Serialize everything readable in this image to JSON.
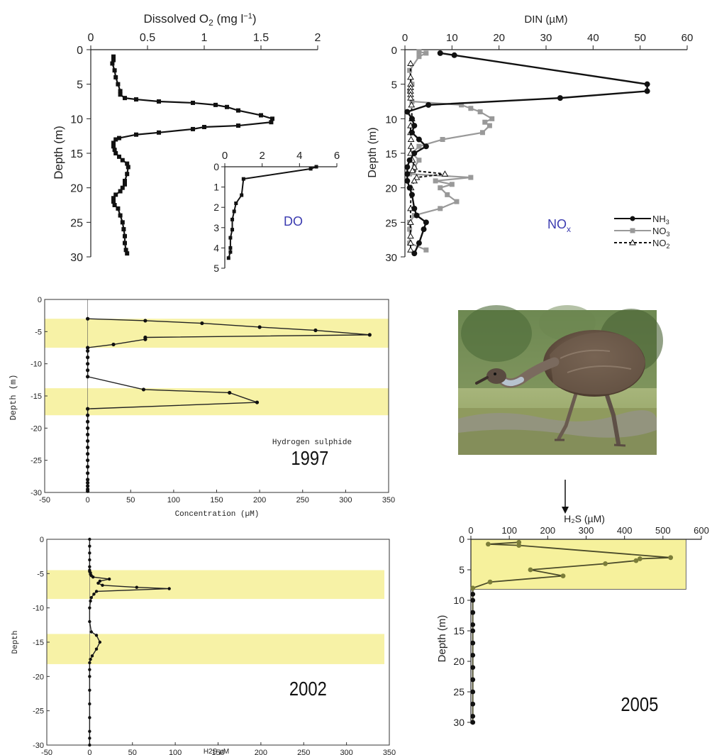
{
  "chart_data": [
    {
      "id": "do",
      "type": "line",
      "xlabel": "Dissolved O₂ (mg l⁻¹)",
      "ylabel": "Depth (m)",
      "xlim": [
        0,
        2
      ],
      "ylim": [
        30,
        0
      ],
      "xticks": [
        "0",
        "0.5",
        "1",
        "1.5",
        "2"
      ],
      "yticks": [
        "0",
        "5",
        "10",
        "15",
        "20",
        "25",
        "30"
      ],
      "series": [
        {
          "x": [
            0.2,
            0.2,
            0.19,
            0.21,
            0.22,
            0.24,
            0.26,
            0.26,
            0.3,
            0.4,
            0.6,
            0.9,
            1.1,
            1.2,
            1.3,
            1.5,
            1.6,
            1.59,
            1.3,
            1.0,
            0.9,
            0.6,
            0.4,
            0.25,
            0.22,
            0.2,
            0.2,
            0.21,
            0.22,
            0.25,
            0.28,
            0.32,
            0.33,
            0.32,
            0.3,
            0.3,
            0.28,
            0.26,
            0.22,
            0.2,
            0.2,
            0.21,
            0.24,
            0.26,
            0.28,
            0.29,
            0.3,
            0.3,
            0.31,
            0.32
          ],
          "y": [
            1,
            1.5,
            2,
            3,
            4,
            5,
            6,
            6.5,
            7,
            7.2,
            7.5,
            7.7,
            8,
            8.3,
            8.8,
            9.5,
            10,
            10.5,
            11,
            11.2,
            11.5,
            12,
            12.3,
            12.8,
            13,
            13.5,
            14,
            14.5,
            15,
            15.5,
            16,
            16.5,
            17,
            18,
            19,
            19.5,
            20,
            20.5,
            21,
            21.5,
            22,
            22.5,
            23,
            24,
            25,
            26,
            27,
            28,
            29,
            29.5
          ]
        }
      ]
    },
    {
      "id": "do-inset",
      "type": "line",
      "label": "DO",
      "xlim": [
        0,
        6
      ],
      "ylim": [
        5,
        0
      ],
      "xticks": [
        "0",
        "2",
        "4",
        "6"
      ],
      "yticks": [
        "0",
        "1",
        "2",
        "3",
        "4",
        "5"
      ],
      "series": [
        {
          "x": [
            4.9,
            4.6,
            1,
            0.9,
            0.6,
            0.5,
            0.4,
            0.4,
            0.3,
            0.3,
            0.3,
            0.2
          ],
          "y": [
            0,
            0.1,
            0.6,
            1.4,
            1.8,
            2.2,
            2.6,
            3.1,
            3.5,
            4,
            4.2,
            4.5
          ]
        }
      ]
    },
    {
      "id": "din",
      "type": "line",
      "xlabel": "DIN (µM)",
      "ylabel": "Depth (m)",
      "label": "NO",
      "label_sub": "x",
      "xlim": [
        0,
        60
      ],
      "ylim": [
        30,
        0
      ],
      "xticks": [
        "0",
        "10",
        "20",
        "30",
        "40",
        "50",
        "60"
      ],
      "yticks": [
        "0",
        "5",
        "10",
        "15",
        "20",
        "25",
        "30"
      ],
      "series": [
        {
          "name": "NH",
          "name_sub": "3",
          "color": "#111111",
          "x": [
            7.5,
            10.5,
            51.5,
            51.5,
            33,
            5,
            0.5,
            1.5,
            2,
            1.5,
            3,
            4.5,
            2,
            1,
            0.5,
            0.5,
            0.5,
            1,
            1.5,
            2,
            2.5,
            4.5,
            4,
            3,
            2
          ],
          "y": [
            0.5,
            0.8,
            5,
            6,
            7,
            8,
            9,
            10,
            11,
            12,
            13,
            14,
            15,
            16,
            17,
            18,
            19,
            20,
            21,
            23,
            24,
            25,
            26,
            28,
            29.5
          ]
        },
        {
          "name": "NO",
          "name_sub": "3",
          "color": "#999999",
          "x": [
            3,
            4.5,
            3,
            1,
            1.5,
            1,
            1.5,
            12,
            14,
            16,
            18.5,
            17,
            18,
            16.5,
            8,
            3,
            1.5,
            3,
            2,
            1,
            14,
            6.5,
            10,
            7.5,
            9,
            11,
            7.5,
            2,
            1,
            1,
            1,
            4.5
          ],
          "y": [
            0.3,
            0.5,
            1,
            3,
            5,
            6,
            7.5,
            8,
            8.5,
            9,
            10,
            10.5,
            11,
            12,
            13,
            14,
            15,
            16,
            17,
            18,
            18.5,
            19,
            19.5,
            20,
            21,
            22,
            23,
            24,
            25,
            26,
            28,
            29
          ]
        },
        {
          "name": "NO",
          "name_sub": "2",
          "color": "#111111",
          "x": [
            1.2,
            1.2,
            1.2,
            1.2,
            1.2,
            1.2,
            1.2,
            1.4,
            1.5,
            1.2,
            1.2,
            1.3,
            1.3,
            1.2,
            1.6,
            2,
            1.6,
            8.5,
            2.5,
            2,
            1.3,
            1.2,
            1.2,
            1.2,
            1.2,
            1.2
          ],
          "y": [
            2,
            4,
            5,
            5.5,
            6,
            6.5,
            7,
            8,
            10,
            11,
            12,
            13,
            14,
            15,
            16,
            17,
            17.5,
            18,
            18.5,
            19,
            20,
            23,
            25,
            27,
            28,
            29
          ]
        }
      ]
    },
    {
      "id": "h2s-1997",
      "type": "line",
      "xlabel": "Concentration (µM)",
      "ylabel": "Depth (m)",
      "title": "Hydrogen sulphide",
      "label": "1997",
      "xlim": [
        -50,
        350
      ],
      "ylim": [
        -30,
        0
      ],
      "xticks": [
        "-50",
        "0",
        "50",
        "100",
        "150",
        "200",
        "250",
        "300",
        "350"
      ],
      "yticks": [
        "0",
        "-5",
        "-10",
        "-15",
        "-20",
        "-25",
        "-30"
      ],
      "shaded_bands": [
        [
          -3,
          -7.5
        ],
        [
          -13.8,
          -18
        ]
      ],
      "series": [
        {
          "x": [
            0,
            67,
            133,
            200,
            265,
            328,
            67,
            67,
            30,
            0,
            0,
            0,
            0,
            0,
            0,
            65,
            165,
            197,
            0,
            0,
            0,
            0,
            0,
            0,
            0,
            0,
            0,
            0,
            0,
            0,
            0,
            0,
            0,
            0
          ],
          "y": [
            -3,
            -3.3,
            -3.7,
            -4.3,
            -4.8,
            -5.5,
            -5.9,
            -6.2,
            -7,
            -7.5,
            -8,
            -9,
            -10,
            -11,
            -12,
            -14,
            -14.5,
            -16,
            -17,
            -18,
            -19,
            -20,
            -21,
            -22,
            -23,
            -24,
            -25,
            -26,
            -27,
            -28,
            -28.5,
            -29,
            -29.5,
            -29.8
          ]
        }
      ]
    },
    {
      "id": "h2s-2002",
      "type": "line",
      "xlabel": "H2S µM",
      "ylabel": "Depth",
      "label": "2002",
      "xlim": [
        -50,
        350
      ],
      "ylim": [
        -30,
        0
      ],
      "xticks": [
        "-50",
        "0",
        "50",
        "100",
        "150",
        "200",
        "250",
        "300",
        "350"
      ],
      "yticks": [
        "0",
        "-5",
        "-10",
        "-15",
        "-20",
        "-25",
        "-30"
      ],
      "shaded_bands": [
        [
          -4.5,
          -8.7
        ],
        [
          -13.8,
          -18.2
        ]
      ],
      "series": [
        {
          "x": [
            0,
            0,
            0,
            0,
            0,
            0,
            0,
            1,
            1,
            2,
            4,
            23,
            12,
            10,
            15,
            55,
            93,
            8,
            5,
            2,
            1,
            0,
            0,
            2,
            8,
            12,
            8,
            3,
            1,
            0,
            0,
            0,
            0,
            0,
            0,
            0,
            0,
            0
          ],
          "y": [
            0,
            -1,
            -2,
            -3,
            -4,
            -4.5,
            -4.7,
            -4.9,
            -5.1,
            -5.3,
            -5.5,
            -5.8,
            -6.1,
            -6.4,
            -6.7,
            -7,
            -7.2,
            -7.6,
            -8,
            -8.5,
            -9,
            -10,
            -12,
            -13.5,
            -14,
            -15,
            -16,
            -17,
            -17.5,
            -18,
            -19,
            -20,
            -22,
            -24,
            -26,
            -28,
            -29,
            -30
          ]
        }
      ]
    },
    {
      "id": "h2s-2005",
      "type": "line",
      "xlabel": "H₂S (µM)",
      "ylabel": "Depth (m)",
      "label": "2005",
      "xlim": [
        0,
        600
      ],
      "ylim": [
        30,
        0
      ],
      "xticks": [
        "0",
        "100",
        "200",
        "300",
        "400",
        "500",
        "600"
      ],
      "yticks": [
        "0",
        "5",
        "10",
        "15",
        "20",
        "25",
        "30"
      ],
      "shaded_bands": [
        [
          0,
          8.2
        ]
      ],
      "series": [
        {
          "x": [
            125,
            45,
            125,
            520,
            440,
            430,
            350,
            155,
            240,
            50,
            5,
            5,
            5,
            5,
            5,
            5,
            5,
            5,
            5,
            5,
            5,
            5,
            5,
            5
          ],
          "y": [
            0.5,
            0.8,
            1,
            3,
            3.2,
            3.5,
            4,
            5,
            6,
            7,
            8,
            9,
            10,
            12,
            14,
            15,
            17,
            19,
            21,
            23,
            25,
            27,
            29,
            30
          ]
        }
      ]
    }
  ]
}
